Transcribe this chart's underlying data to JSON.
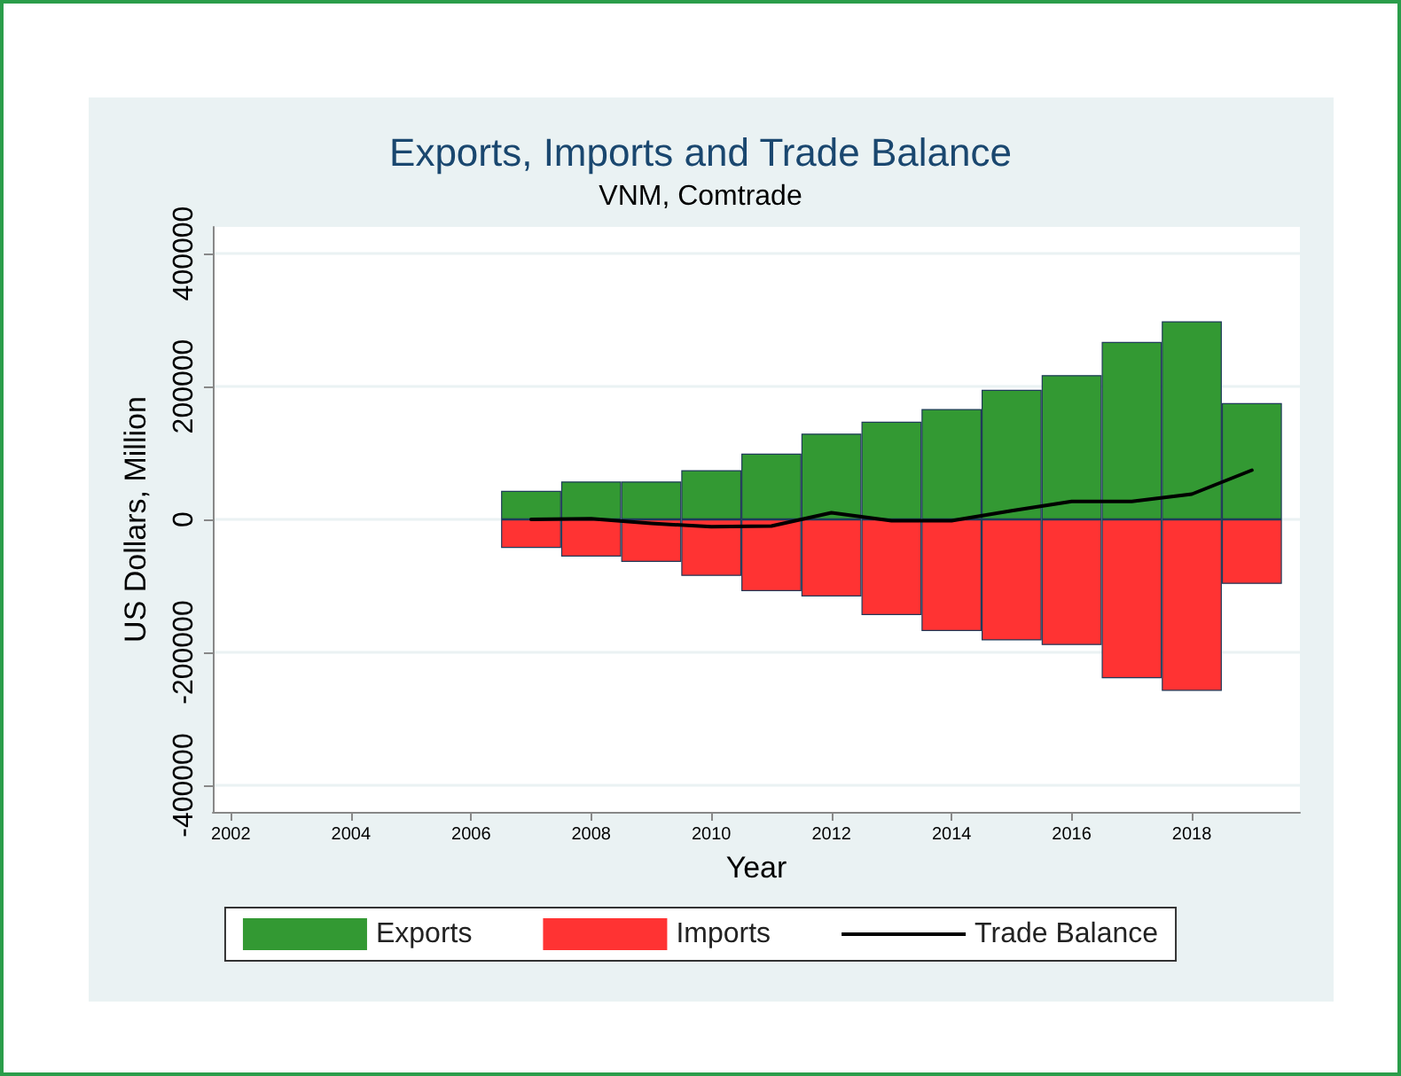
{
  "chart_data": {
    "type": "bar",
    "title": "Exports, Imports and Trade Balance",
    "subtitle": "VNM, Comtrade",
    "xlabel": "Year",
    "ylabel": "US Dollars, Million",
    "x": [
      2007,
      2008,
      2009,
      2010,
      2011,
      2012,
      2013,
      2014,
      2015,
      2016,
      2017,
      2018,
      2019
    ],
    "series": [
      {
        "name": "Exports",
        "color": "#339933",
        "values": [
          43000,
          57000,
          57000,
          74000,
          99000,
          129000,
          147000,
          166000,
          195000,
          217000,
          267000,
          298000,
          175000
        ]
      },
      {
        "name": "Imports",
        "color": "#ff3333",
        "values": [
          -43000,
          -56000,
          -64000,
          -85000,
          -108000,
          -116000,
          -144000,
          -168000,
          -182000,
          -189000,
          -239000,
          -258000,
          -97000
        ]
      },
      {
        "name": "Trade Balance",
        "type": "line",
        "color": "#000000",
        "values": [
          0,
          1000,
          -6000,
          -11000,
          -10000,
          10000,
          -2000,
          -2000,
          13000,
          27000,
          27000,
          38000,
          74000
        ]
      }
    ],
    "xlim": [
      2001.7,
      2019.8
    ],
    "xticks": [
      2002,
      2004,
      2006,
      2008,
      2010,
      2012,
      2014,
      2016,
      2018
    ],
    "ylim": [
      -440000,
      440000
    ],
    "yticks": [
      -400000,
      -200000,
      0,
      200000,
      400000
    ],
    "stacked": true,
    "grid": "y",
    "legend": "bottom",
    "marker": "none"
  }
}
